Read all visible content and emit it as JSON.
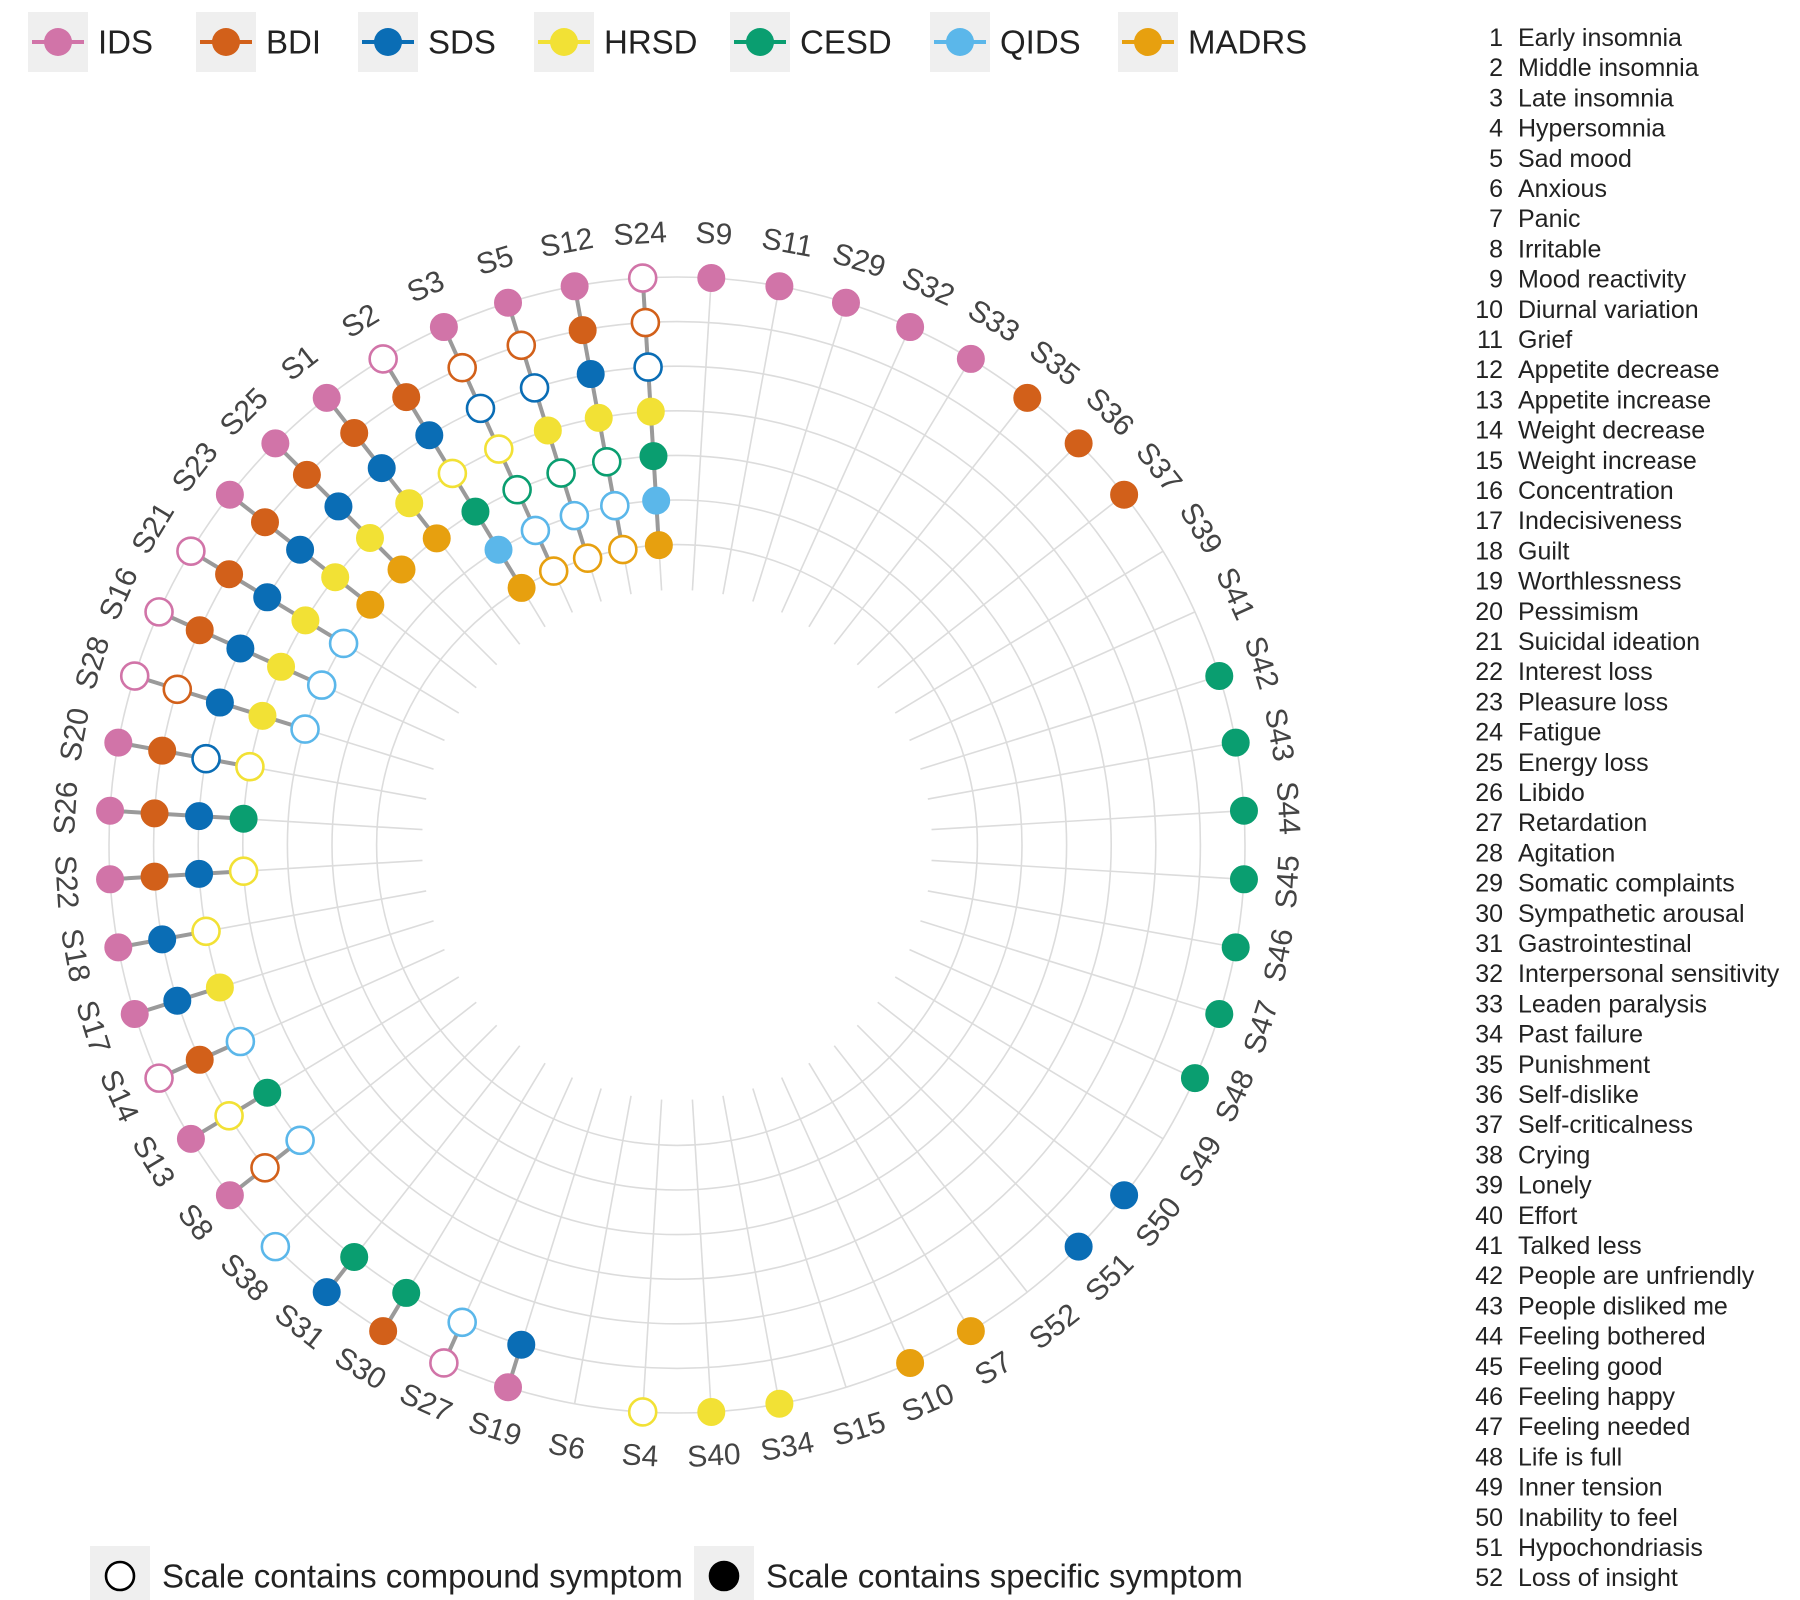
{
  "chart_data": {
    "type": "polar-dot",
    "title": "",
    "scales": [
      {
        "name": "IDS",
        "color": "#D174A8"
      },
      {
        "name": "BDI",
        "color": "#D2601A"
      },
      {
        "name": "SDS",
        "color": "#0A6DB5"
      },
      {
        "name": "HRSD",
        "color": "#F2E135"
      },
      {
        "name": "CESD",
        "color": "#0A9E70"
      },
      {
        "name": "QIDS",
        "color": "#5BB7EA"
      },
      {
        "name": "MADRS",
        "color": "#E7A00F"
      }
    ],
    "categories": [
      "S9",
      "S11",
      "S29",
      "S32",
      "S33",
      "S35",
      "S36",
      "S37",
      "S39",
      "S41",
      "S42",
      "S43",
      "S44",
      "S45",
      "S46",
      "S47",
      "S48",
      "S49",
      "S50",
      "S51",
      "S52",
      "S7",
      "S10",
      "S15",
      "S34",
      "S40",
      "S4",
      "S6",
      "S19",
      "S27",
      "S30",
      "S31",
      "S38",
      "S8",
      "S13",
      "S14",
      "S17",
      "S18",
      "S22",
      "S26",
      "S20",
      "S28",
      "S16",
      "S21",
      "S23",
      "S25",
      "S1",
      "S2",
      "S3",
      "S5",
      "S12",
      "S24"
    ],
    "symptoms_by_category": [
      [
        [
          "IDS",
          "specific"
        ]
      ],
      [
        [
          "IDS",
          "specific"
        ]
      ],
      [
        [
          "IDS",
          "specific"
        ]
      ],
      [
        [
          "IDS",
          "specific"
        ]
      ],
      [
        [
          "IDS",
          "specific"
        ]
      ],
      [
        [
          "BDI",
          "specific"
        ]
      ],
      [
        [
          "BDI",
          "specific"
        ]
      ],
      [
        [
          "BDI",
          "specific"
        ]
      ],
      [],
      [],
      [
        [
          "CESD",
          "specific"
        ]
      ],
      [
        [
          "CESD",
          "specific"
        ]
      ],
      [
        [
          "CESD",
          "specific"
        ]
      ],
      [
        [
          "CESD",
          "specific"
        ]
      ],
      [
        [
          "CESD",
          "specific"
        ]
      ],
      [
        [
          "CESD",
          "specific"
        ]
      ],
      [
        [
          "CESD",
          "specific"
        ]
      ],
      [],
      [
        [
          "SDS",
          "specific"
        ]
      ],
      [
        [
          "SDS",
          "specific"
        ]
      ],
      [],
      [
        [
          "MADRS",
          "specific"
        ]
      ],
      [
        [
          "MADRS",
          "specific"
        ]
      ],
      [],
      [
        [
          "HRSD",
          "specific"
        ]
      ],
      [
        [
          "HRSD",
          "specific"
        ]
      ],
      [
        [
          "HRSD",
          "compound"
        ]
      ],
      [],
      [
        [
          "IDS",
          "specific"
        ],
        [
          "SDS",
          "specific"
        ]
      ],
      [
        [
          "IDS",
          "compound"
        ],
        [
          "QIDS",
          "compound"
        ]
      ],
      [
        [
          "BDI",
          "specific"
        ],
        [
          "CESD",
          "specific"
        ]
      ],
      [
        [
          "SDS",
          "specific"
        ],
        [
          "CESD",
          "specific"
        ]
      ],
      [
        [
          "QIDS",
          "compound"
        ]
      ],
      [
        [
          "IDS",
          "specific"
        ],
        [
          "BDI",
          "compound"
        ],
        [
          "QIDS",
          "compound"
        ]
      ],
      [
        [
          "IDS",
          "specific"
        ],
        [
          "HRSD",
          "compound"
        ],
        [
          "CESD",
          "specific"
        ]
      ],
      [
        [
          "IDS",
          "compound"
        ],
        [
          "BDI",
          "specific"
        ],
        [
          "QIDS",
          "compound"
        ]
      ],
      [
        [
          "IDS",
          "specific"
        ],
        [
          "SDS",
          "specific"
        ],
        [
          "HRSD",
          "specific"
        ]
      ],
      [
        [
          "IDS",
          "specific"
        ],
        [
          "SDS",
          "specific"
        ],
        [
          "HRSD",
          "compound"
        ]
      ],
      [
        [
          "IDS",
          "specific"
        ],
        [
          "BDI",
          "specific"
        ],
        [
          "SDS",
          "specific"
        ],
        [
          "HRSD",
          "compound"
        ]
      ],
      [
        [
          "IDS",
          "specific"
        ],
        [
          "BDI",
          "specific"
        ],
        [
          "SDS",
          "specific"
        ],
        [
          "CESD",
          "specific"
        ]
      ],
      [
        [
          "IDS",
          "specific"
        ],
        [
          "BDI",
          "specific"
        ],
        [
          "SDS",
          "compound"
        ],
        [
          "HRSD",
          "compound"
        ]
      ],
      [
        [
          "IDS",
          "compound"
        ],
        [
          "BDI",
          "compound"
        ],
        [
          "SDS",
          "specific"
        ],
        [
          "HRSD",
          "specific"
        ],
        [
          "QIDS",
          "compound"
        ]
      ],
      [
        [
          "IDS",
          "compound"
        ],
        [
          "BDI",
          "specific"
        ],
        [
          "SDS",
          "specific"
        ],
        [
          "HRSD",
          "specific"
        ],
        [
          "QIDS",
          "compound"
        ]
      ],
      [
        [
          "IDS",
          "compound"
        ],
        [
          "BDI",
          "specific"
        ],
        [
          "SDS",
          "specific"
        ],
        [
          "HRSD",
          "specific"
        ],
        [
          "QIDS",
          "compound"
        ]
      ],
      [
        [
          "IDS",
          "specific"
        ],
        [
          "BDI",
          "specific"
        ],
        [
          "SDS",
          "specific"
        ],
        [
          "HRSD",
          "specific"
        ],
        [
          "MADRS",
          "specific"
        ]
      ],
      [
        [
          "IDS",
          "specific"
        ],
        [
          "BDI",
          "specific"
        ],
        [
          "SDS",
          "specific"
        ],
        [
          "HRSD",
          "specific"
        ],
        [
          "MADRS",
          "specific"
        ]
      ],
      [
        [
          "IDS",
          "specific"
        ],
        [
          "BDI",
          "specific"
        ],
        [
          "SDS",
          "specific"
        ],
        [
          "HRSD",
          "specific"
        ],
        [
          "MADRS",
          "specific"
        ]
      ],
      [
        [
          "IDS",
          "compound"
        ],
        [
          "BDI",
          "specific"
        ],
        [
          "SDS",
          "specific"
        ],
        [
          "HRSD",
          "compound"
        ],
        [
          "CESD",
          "specific"
        ],
        [
          "QIDS",
          "specific"
        ],
        [
          "MADRS",
          "specific"
        ]
      ],
      [
        [
          "IDS",
          "specific"
        ],
        [
          "BDI",
          "compound"
        ],
        [
          "SDS",
          "compound"
        ],
        [
          "HRSD",
          "compound"
        ],
        [
          "CESD",
          "compound"
        ],
        [
          "QIDS",
          "compound"
        ],
        [
          "MADRS",
          "compound"
        ]
      ],
      [
        [
          "IDS",
          "specific"
        ],
        [
          "BDI",
          "compound"
        ],
        [
          "SDS",
          "compound"
        ],
        [
          "HRSD",
          "specific"
        ],
        [
          "CESD",
          "compound"
        ],
        [
          "QIDS",
          "compound"
        ],
        [
          "MADRS",
          "compound"
        ]
      ],
      [
        [
          "IDS",
          "specific"
        ],
        [
          "BDI",
          "specific"
        ],
        [
          "SDS",
          "specific"
        ],
        [
          "HRSD",
          "specific"
        ],
        [
          "CESD",
          "compound"
        ],
        [
          "QIDS",
          "compound"
        ],
        [
          "MADRS",
          "compound"
        ]
      ],
      [
        [
          "IDS",
          "compound"
        ],
        [
          "BDI",
          "compound"
        ],
        [
          "SDS",
          "compound"
        ],
        [
          "HRSD",
          "specific"
        ],
        [
          "CESD",
          "specific"
        ],
        [
          "QIDS",
          "specific"
        ],
        [
          "MADRS",
          "specific"
        ]
      ]
    ],
    "legend_fill": [
      {
        "label": "Scale contains compound symptom",
        "fill": "open"
      },
      {
        "label": "Scale contains specific symptom",
        "fill": "filled"
      }
    ],
    "symptom_list": [
      {
        "num": "1",
        "name": "Early insomnia"
      },
      {
        "num": "2",
        "name": "Middle insomnia"
      },
      {
        "num": "3",
        "name": "Late insomnia"
      },
      {
        "num": "4",
        "name": "Hypersomnia"
      },
      {
        "num": "5",
        "name": "Sad mood"
      },
      {
        "num": "6",
        "name": "Anxious"
      },
      {
        "num": "7",
        "name": "Panic"
      },
      {
        "num": "8",
        "name": "Irritable"
      },
      {
        "num": "9",
        "name": "Mood reactivity"
      },
      {
        "num": "10",
        "name": "Diurnal variation"
      },
      {
        "num": "11",
        "name": "Grief"
      },
      {
        "num": "12",
        "name": "Appetite decrease"
      },
      {
        "num": "13",
        "name": "Appetite increase"
      },
      {
        "num": "14",
        "name": "Weight decrease"
      },
      {
        "num": "15",
        "name": "Weight increase"
      },
      {
        "num": "16",
        "name": "Concentration"
      },
      {
        "num": "17",
        "name": "Indecisiveness"
      },
      {
        "num": "18",
        "name": "Guilt"
      },
      {
        "num": "19",
        "name": "Worthlessness"
      },
      {
        "num": "20",
        "name": "Pessimism"
      },
      {
        "num": "21",
        "name": "Suicidal ideation"
      },
      {
        "num": "22",
        "name": "Interest loss"
      },
      {
        "num": "23",
        "name": "Pleasure loss"
      },
      {
        "num": "24",
        "name": "Fatigue"
      },
      {
        "num": "25",
        "name": "Energy loss"
      },
      {
        "num": "26",
        "name": "Libido"
      },
      {
        "num": "27",
        "name": "Retardation"
      },
      {
        "num": "28",
        "name": "Agitation"
      },
      {
        "num": "29",
        "name": "Somatic complaints"
      },
      {
        "num": "30",
        "name": "Sympathetic arousal"
      },
      {
        "num": "31",
        "name": "Gastrointestinal"
      },
      {
        "num": "32",
        "name": "Interpersonal sensitivity"
      },
      {
        "num": "33",
        "name": "Leaden paralysis"
      },
      {
        "num": "34",
        "name": "Past failure"
      },
      {
        "num": "35",
        "name": "Punishment"
      },
      {
        "num": "36",
        "name": "Self-dislike"
      },
      {
        "num": "37",
        "name": "Self-criticalness"
      },
      {
        "num": "38",
        "name": "Crying"
      },
      {
        "num": "39",
        "name": "Lonely"
      },
      {
        "num": "40",
        "name": "Effort"
      },
      {
        "num": "41",
        "name": "Talked less"
      },
      {
        "num": "42",
        "name": "People are unfriendly"
      },
      {
        "num": "43",
        "name": "People disliked me"
      },
      {
        "num": "44",
        "name": "Feeling bothered"
      },
      {
        "num": "45",
        "name": "Feeling good"
      },
      {
        "num": "46",
        "name": "Feeling happy"
      },
      {
        "num": "47",
        "name": "Feeling needed"
      },
      {
        "num": "48",
        "name": "Life is full"
      },
      {
        "num": "49",
        "name": "Inner tension"
      },
      {
        "num": "50",
        "name": "Inability to feel"
      },
      {
        "num": "51",
        "name": "Hypochondriasis"
      },
      {
        "num": "52",
        "name": "Loss of insight"
      }
    ]
  }
}
